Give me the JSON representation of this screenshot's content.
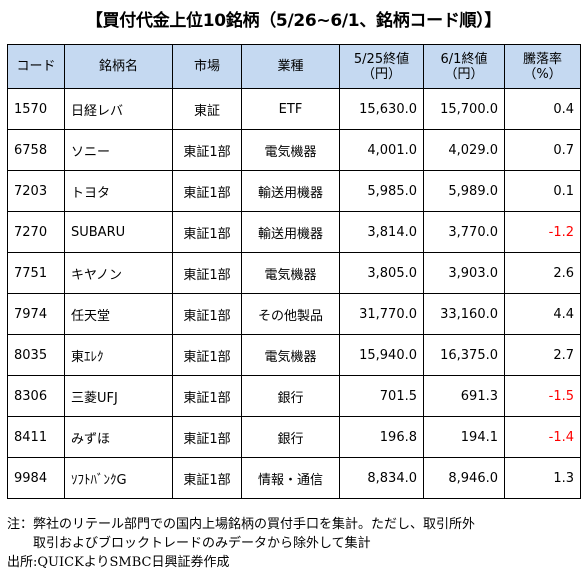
{
  "title": "【買付代金上位10銘柄（5/26~6/1、銘柄コード順）】",
  "table": {
    "headers": {
      "code": "コード",
      "name": "銘柄名",
      "market": "市場",
      "sector": "業種",
      "price_0525_line1": "5/25終値",
      "price_0525_line2": "（円）",
      "price_0601_line1": "6/1終値",
      "price_0601_line2": "（円）",
      "change_line1": "騰落率",
      "change_line2": "（%）"
    },
    "rows": [
      {
        "code": "1570",
        "name": "日経レバ",
        "market": "東証",
        "sector": "ETF",
        "p1": "15,630.0",
        "p2": "15,700.0",
        "chg": "0.4",
        "negative": false
      },
      {
        "code": "6758",
        "name": "ソニー",
        "market": "東証1部",
        "sector": "電気機器",
        "p1": "4,001.0",
        "p2": "4,029.0",
        "chg": "0.7",
        "negative": false
      },
      {
        "code": "7203",
        "name": "トヨタ",
        "market": "東証1部",
        "sector": "輸送用機器",
        "p1": "5,985.0",
        "p2": "5,989.0",
        "chg": "0.1",
        "negative": false
      },
      {
        "code": "7270",
        "name": "SUBARU",
        "market": "東証1部",
        "sector": "輸送用機器",
        "p1": "3,814.0",
        "p2": "3,770.0",
        "chg": "-1.2",
        "negative": true
      },
      {
        "code": "7751",
        "name": "キヤノン",
        "market": "東証1部",
        "sector": "電気機器",
        "p1": "3,805.0",
        "p2": "3,903.0",
        "chg": "2.6",
        "negative": false
      },
      {
        "code": "7974",
        "name": "任天堂",
        "market": "東証1部",
        "sector": "その他製品",
        "p1": "31,770.0",
        "p2": "33,160.0",
        "chg": "4.4",
        "negative": false
      },
      {
        "code": "8035",
        "name": "東ｴﾚｸ",
        "market": "東証1部",
        "sector": "電気機器",
        "p1": "15,940.0",
        "p2": "16,375.0",
        "chg": "2.7",
        "negative": false
      },
      {
        "code": "8306",
        "name": "三菱UFJ",
        "market": "東証1部",
        "sector": "銀行",
        "p1": "701.5",
        "p2": "691.3",
        "chg": "-1.5",
        "negative": true
      },
      {
        "code": "8411",
        "name": "みずほ",
        "market": "東証1部",
        "sector": "銀行",
        "p1": "196.8",
        "p2": "194.1",
        "chg": "-1.4",
        "negative": true
      },
      {
        "code": "9984",
        "name": "ｿﾌﾄﾊﾞﾝｸG",
        "market": "東証1部",
        "sector": "情報・通信",
        "p1": "8,834.0",
        "p2": "8,946.0",
        "chg": "1.3",
        "negative": false
      }
    ]
  },
  "notes": {
    "line1": "注：弊社のリテール部門での国内上場銘柄の買付手口を集計。ただし、取引所外",
    "line2": "取引およびブロックトレードのみデータから除外して集計",
    "line3": "出所:QUICKよりSMBC日興証券作成"
  },
  "colors": {
    "header_bg": "#c5d9f1",
    "negative": "#ff0000"
  }
}
